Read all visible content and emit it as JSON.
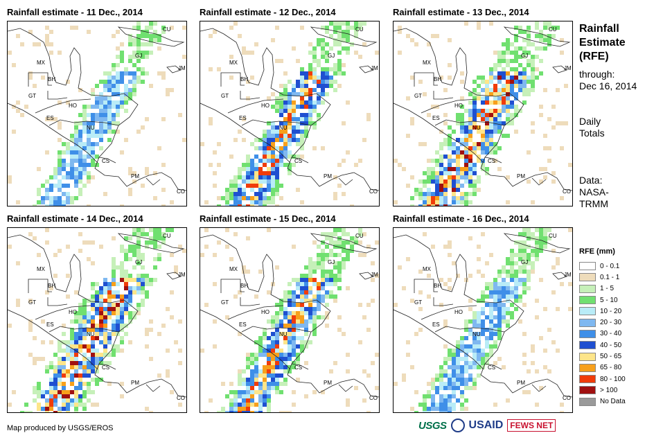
{
  "panels": [
    {
      "title": "Rainfall estimate - 11 Dec., 2014",
      "intensity": 1
    },
    {
      "title": "Rainfall estimate - 12 Dec., 2014",
      "intensity": 2
    },
    {
      "title": "Rainfall estimate - 13 Dec., 2014",
      "intensity": 3
    },
    {
      "title": "Rainfall estimate - 14 Dec., 2014",
      "intensity": 3
    },
    {
      "title": "Rainfall estimate - 15 Dec., 2014",
      "intensity": 2
    },
    {
      "title": "Rainfall estimate - 16 Dec., 2014",
      "intensity": 1
    }
  ],
  "country_labels": [
    "CU",
    "MX",
    "GJ",
    "JM",
    "BH",
    "GT",
    "HO",
    "ES",
    "NU",
    "CS",
    "PM",
    "CO"
  ],
  "sidebar": {
    "title_line1": "Rainfall",
    "title_line2": "Estimate",
    "title_line3": "(RFE)",
    "through": "through:",
    "date": "Dec 16, 2014",
    "totals_line1": "Daily",
    "totals_line2": "Totals",
    "data_line1": "Data:",
    "data_line2": "NASA-",
    "data_line3": "TRMM"
  },
  "legend": {
    "title": "RFE (mm)",
    "items": [
      {
        "label": "0 - 0.1",
        "color": "#ffffff"
      },
      {
        "label": "0.1 - 1",
        "color": "#eedcbb"
      },
      {
        "label": "1 - 5",
        "color": "#c6f0b9"
      },
      {
        "label": "5 - 10",
        "color": "#70e070"
      },
      {
        "label": "10 - 20",
        "color": "#b9ecf7"
      },
      {
        "label": "20 - 30",
        "color": "#7fb8f0"
      },
      {
        "label": "30 - 40",
        "color": "#3f8fe8"
      },
      {
        "label": "40 - 50",
        "color": "#1f4fd0"
      },
      {
        "label": "50 - 65",
        "color": "#fde58a"
      },
      {
        "label": "65 - 80",
        "color": "#f7a01c"
      },
      {
        "label": "80 - 100",
        "color": "#f03c0a"
      },
      {
        "label": "> 100",
        "color": "#a01010"
      },
      {
        "label": "No Data",
        "color": "#9a9a9a"
      }
    ]
  },
  "footer": {
    "credit": "Map produced by USGS/EROS",
    "logos": {
      "usgs": "USGS",
      "usaid": "USAID",
      "fews": "FEWS NET"
    }
  }
}
